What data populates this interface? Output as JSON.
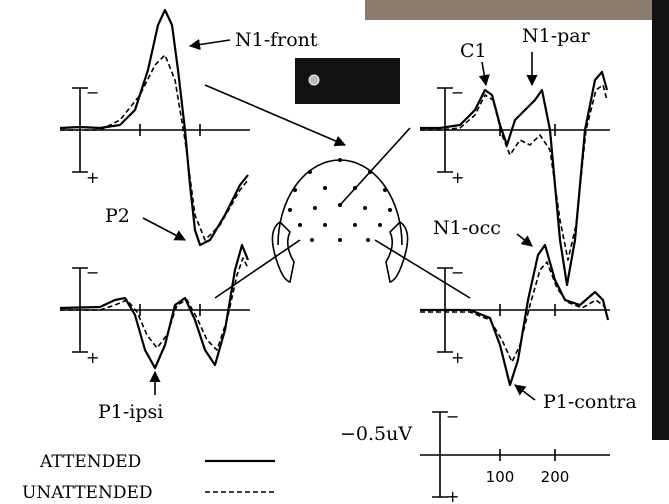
{
  "labels": {
    "n1_front": "N1-front",
    "c1": "C1",
    "n1_par": "N1-par",
    "p2": "P2",
    "n1_occ": "N1-occ",
    "p1_ipsi": "P1-ipsi",
    "p1_contra": "P1-contra"
  },
  "calibration": {
    "amplitude": "−0.5uV",
    "ticks": [
      100,
      200
    ]
  },
  "polarity": {
    "negative": "−",
    "positive": "+"
  },
  "legend": {
    "attended": "ATTENDED",
    "unattended": "UNATTENDED"
  }
}
